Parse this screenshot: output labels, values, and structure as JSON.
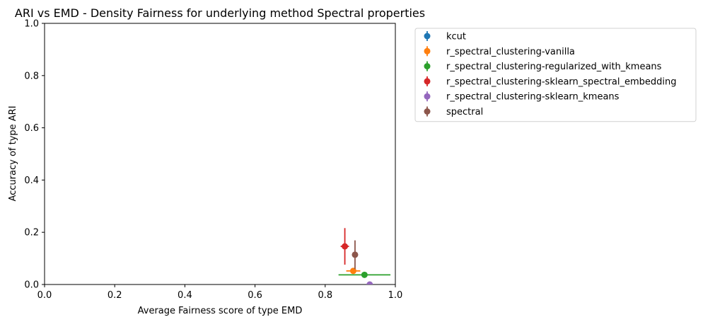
{
  "chart_data": {
    "type": "scatter",
    "title": "ARI vs EMD - Density Fairness for underlying method Spectral properties",
    "xlabel": "Average Fairness score of type EMD",
    "ylabel": "Accuracy of type ARI",
    "xlim": [
      0.0,
      1.0
    ],
    "ylim": [
      0.0,
      1.0
    ],
    "x_ticks": [
      "0.0",
      "0.2",
      "0.4",
      "0.6",
      "0.8",
      "1.0"
    ],
    "y_ticks": [
      "0.0",
      "0.2",
      "0.4",
      "0.6",
      "0.8",
      "1.0"
    ],
    "grid": false,
    "legend_position": "outside-right",
    "errorbars": true,
    "series": [
      {
        "name": "kcut",
        "color": "#1f77b4",
        "x": null,
        "y": null,
        "xerr": 0,
        "yerr": 0
      },
      {
        "name": "r_spectral_clustering-vanilla",
        "color": "#ff7f0e",
        "x": 0.88,
        "y": 0.052,
        "xerr": 0.02,
        "yerr": 0.0
      },
      {
        "name": "r_spectral_clustering-regularized_with_kmeans",
        "color": "#2ca02c",
        "x": 0.912,
        "y": 0.037,
        "xerr": 0.074,
        "yerr": 0.0
      },
      {
        "name": "r_spectral_clustering-sklearn_spectral_embedding",
        "color": "#d62728",
        "x": 0.856,
        "y": 0.146,
        "xerr": 0.012,
        "yerr": 0.07
      },
      {
        "name": "r_spectral_clustering-sklearn_kmeans",
        "color": "#9467bd",
        "x": 0.927,
        "y": 0.0,
        "xerr": 0.0,
        "yerr": 0.0
      },
      {
        "name": "spectral",
        "color": "#8c564b",
        "x": 0.885,
        "y": 0.114,
        "xerr": 0.0,
        "yerr": 0.055
      }
    ]
  }
}
